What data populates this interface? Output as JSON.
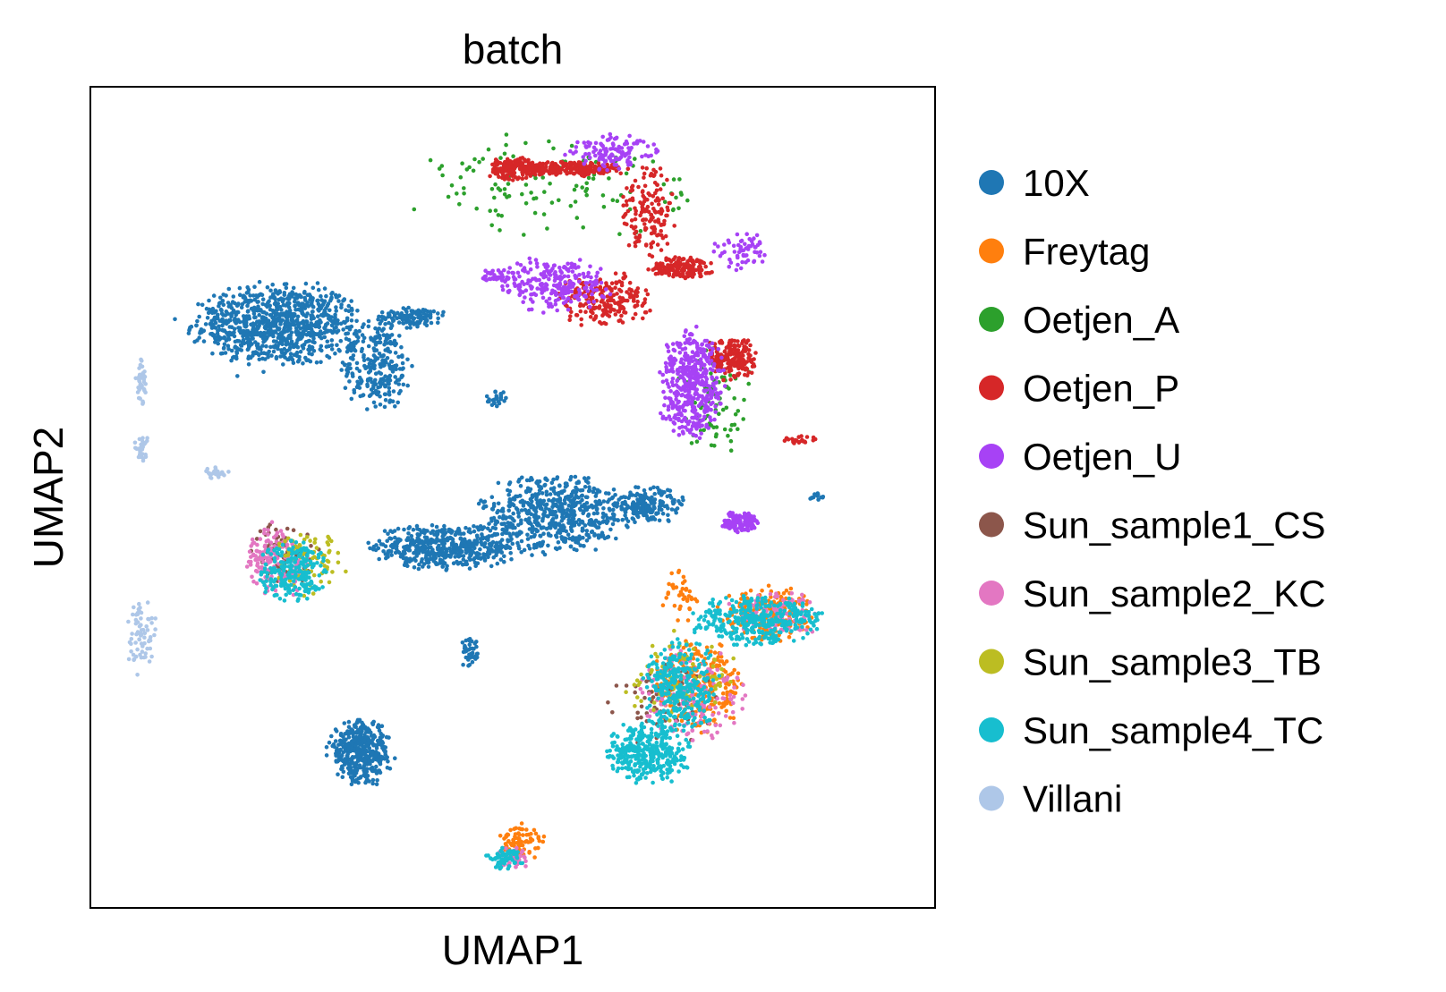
{
  "chart_data": {
    "type": "scatter",
    "title": "batch",
    "xlabel": "UMAP1",
    "ylabel": "UMAP2",
    "xlim": [
      0,
      100
    ],
    "ylim": [
      0,
      100
    ],
    "ticks": "none",
    "grid": false,
    "legend_position": "right",
    "series": [
      {
        "name": "10X",
        "color": "#1f77b4",
        "clusters": [
          {
            "cx": 22,
            "cy": 71,
            "rx": 9,
            "ry": 4.5,
            "n": 900
          },
          {
            "cx": 34,
            "cy": 66,
            "rx": 4,
            "ry": 5,
            "n": 250
          },
          {
            "cx": 38,
            "cy": 72,
            "rx": 3.5,
            "ry": 1.2,
            "n": 120
          },
          {
            "cx": 42,
            "cy": 44,
            "rx": 8,
            "ry": 2.5,
            "n": 500
          },
          {
            "cx": 55,
            "cy": 48,
            "rx": 8,
            "ry": 4.5,
            "n": 600
          },
          {
            "cx": 66,
            "cy": 49,
            "rx": 4,
            "ry": 2,
            "n": 180
          },
          {
            "cx": 32,
            "cy": 19,
            "rx": 3.5,
            "ry": 3.5,
            "n": 400
          },
          {
            "cx": 45,
            "cy": 31,
            "rx": 1.2,
            "ry": 1.5,
            "n": 40
          },
          {
            "cx": 48,
            "cy": 62,
            "rx": 1.2,
            "ry": 1,
            "n": 25
          },
          {
            "cx": 86,
            "cy": 50,
            "rx": 1,
            "ry": 0.5,
            "n": 12
          }
        ]
      },
      {
        "name": "Freytag",
        "color": "#ff7f0e",
        "clusters": [
          {
            "cx": 72,
            "cy": 27,
            "rx": 5,
            "ry": 5,
            "n": 260
          },
          {
            "cx": 80,
            "cy": 36,
            "rx": 5,
            "ry": 3,
            "n": 200
          },
          {
            "cx": 51,
            "cy": 8,
            "rx": 2.5,
            "ry": 2,
            "n": 80
          },
          {
            "cx": 70,
            "cy": 38,
            "rx": 2,
            "ry": 3,
            "n": 40
          }
        ]
      },
      {
        "name": "Oetjen_A",
        "color": "#2ca02c",
        "clusters": [
          {
            "cx": 55,
            "cy": 88,
            "rx": 14,
            "ry": 6,
            "n": 120
          },
          {
            "cx": 74,
            "cy": 62,
            "rx": 4,
            "ry": 6,
            "n": 90
          }
        ]
      },
      {
        "name": "Oetjen_P",
        "color": "#d62728",
        "clusters": [
          {
            "cx": 50,
            "cy": 90,
            "rx": 3,
            "ry": 1.3,
            "n": 160
          },
          {
            "cx": 57,
            "cy": 90,
            "rx": 6,
            "ry": 0.8,
            "n": 220
          },
          {
            "cx": 66,
            "cy": 85,
            "rx": 3,
            "ry": 5,
            "n": 150
          },
          {
            "cx": 70,
            "cy": 78,
            "rx": 3.5,
            "ry": 1.2,
            "n": 160
          },
          {
            "cx": 61,
            "cy": 74,
            "rx": 5,
            "ry": 3,
            "n": 200
          },
          {
            "cx": 76,
            "cy": 67,
            "rx": 2.5,
            "ry": 2.5,
            "n": 200
          },
          {
            "cx": 84,
            "cy": 57,
            "rx": 2,
            "ry": 0.6,
            "n": 25
          }
        ]
      },
      {
        "name": "Oetjen_U",
        "color": "#a742f5",
        "clusters": [
          {
            "cx": 55,
            "cy": 76,
            "rx": 6,
            "ry": 3,
            "n": 250
          },
          {
            "cx": 71,
            "cy": 64,
            "rx": 3.5,
            "ry": 6,
            "n": 450
          },
          {
            "cx": 62,
            "cy": 92,
            "rx": 5,
            "ry": 2,
            "n": 120
          },
          {
            "cx": 77,
            "cy": 80,
            "rx": 3,
            "ry": 2,
            "n": 60
          },
          {
            "cx": 77,
            "cy": 47,
            "rx": 2,
            "ry": 1.3,
            "n": 120
          },
          {
            "cx": 48,
            "cy": 77,
            "rx": 1.5,
            "ry": 0.8,
            "n": 30
          }
        ]
      },
      {
        "name": "Sun_sample1_CS",
        "color": "#8c564b",
        "clusters": [
          {
            "cx": 23,
            "cy": 43,
            "rx": 3.5,
            "ry": 3.5,
            "n": 80
          },
          {
            "cx": 68,
            "cy": 25,
            "rx": 6,
            "ry": 5,
            "n": 60
          }
        ]
      },
      {
        "name": "Sun_sample2_KC",
        "color": "#e377c2",
        "clusters": [
          {
            "cx": 22,
            "cy": 42,
            "rx": 3.5,
            "ry": 4,
            "n": 160
          },
          {
            "cx": 71,
            "cy": 26,
            "rx": 6,
            "ry": 5,
            "n": 160
          },
          {
            "cx": 81,
            "cy": 36,
            "rx": 5,
            "ry": 2.5,
            "n": 100
          },
          {
            "cx": 50,
            "cy": 6,
            "rx": 2,
            "ry": 1.2,
            "n": 40
          }
        ]
      },
      {
        "name": "Sun_sample3_TB",
        "color": "#bcbd22",
        "clusters": [
          {
            "cx": 26,
            "cy": 42,
            "rx": 4,
            "ry": 3.5,
            "n": 80
          },
          {
            "cx": 70,
            "cy": 28,
            "rx": 6,
            "ry": 5,
            "n": 80
          }
        ]
      },
      {
        "name": "Sun_sample4_TC",
        "color": "#17becf",
        "clusters": [
          {
            "cx": 24,
            "cy": 41,
            "rx": 3.5,
            "ry": 3.5,
            "n": 220
          },
          {
            "cx": 66,
            "cy": 19,
            "rx": 4.5,
            "ry": 3.5,
            "n": 350
          },
          {
            "cx": 70,
            "cy": 27,
            "rx": 4,
            "ry": 5,
            "n": 300
          },
          {
            "cx": 79,
            "cy": 35,
            "rx": 7,
            "ry": 2.8,
            "n": 350
          },
          {
            "cx": 49,
            "cy": 6,
            "rx": 2,
            "ry": 1.2,
            "n": 60
          }
        ]
      },
      {
        "name": "Villani",
        "color": "#aec7e8",
        "clusters": [
          {
            "cx": 6,
            "cy": 64,
            "rx": 0.6,
            "ry": 2.5,
            "n": 40
          },
          {
            "cx": 6,
            "cy": 56,
            "rx": 0.8,
            "ry": 1.5,
            "n": 30
          },
          {
            "cx": 15,
            "cy": 53,
            "rx": 1.5,
            "ry": 0.6,
            "n": 25
          },
          {
            "cx": 6,
            "cy": 33,
            "rx": 1.6,
            "ry": 4,
            "n": 70
          }
        ]
      }
    ]
  }
}
